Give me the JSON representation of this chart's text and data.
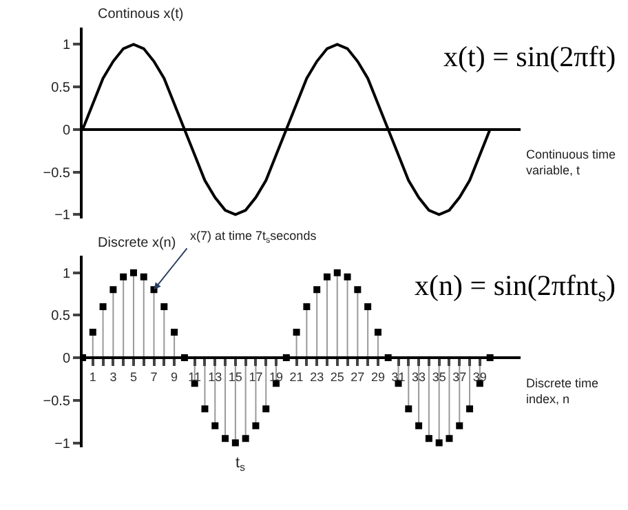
{
  "chart_data": [
    {
      "type": "line",
      "ylabel": "Continous x(t)",
      "xlabel": "Continuous time variable, t",
      "marker": "none",
      "line_style": "solid",
      "tick_labels": "y",
      "categories": [
        null,
        null,
        null,
        null,
        null,
        null,
        null,
        null,
        null,
        null,
        null,
        null,
        null,
        null,
        null,
        null,
        null,
        null,
        null,
        null,
        null,
        null,
        null,
        null,
        null,
        null,
        null,
        null,
        null,
        null,
        null,
        null,
        null,
        null,
        null,
        null,
        null,
        null,
        null,
        null,
        null
      ],
      "series": [
        {
          "color": "#000000",
          "values": [
            0,
            0.3,
            0.6,
            0.8,
            0.95,
            1,
            0.95,
            0.8,
            0.6,
            0.3,
            0,
            -0.3,
            -0.6,
            -0.8,
            -0.95,
            -1,
            -0.95,
            -0.8,
            -0.6,
            -0.3,
            0,
            0.3,
            0.6,
            0.8,
            0.95,
            1,
            0.95,
            0.8,
            0.6,
            0.3,
            0,
            -0.3,
            -0.6,
            -0.8,
            -0.95,
            -1,
            -0.95,
            -0.8,
            -0.6,
            -0.3,
            0
          ]
        }
      ],
      "ylim": [
        -1.05,
        1.2
      ],
      "yticks": [
        -1,
        -0.5,
        0,
        0.5,
        1
      ],
      "annotations": [
        "x(t) = sin(2πft)"
      ]
    },
    {
      "type": "lollipop",
      "ylabel": "Discrete x(n)",
      "xlabel": "Discrete time index, n",
      "marker": "square",
      "x": [
        0,
        1,
        2,
        3,
        4,
        5,
        6,
        7,
        8,
        9,
        10,
        11,
        12,
        13,
        14,
        15,
        16,
        17,
        18,
        19,
        20,
        21,
        22,
        23,
        24,
        25,
        26,
        27,
        28,
        29,
        30,
        31,
        32,
        33,
        34,
        35,
        36,
        37,
        38,
        39,
        40
      ],
      "series": [
        {
          "color": "#000000",
          "values": [
            0,
            0.3,
            0.6,
            0.8,
            0.95,
            1,
            0.95,
            0.8,
            0.6,
            0.3,
            0,
            -0.3,
            -0.6,
            -0.8,
            -0.95,
            -1,
            -0.95,
            -0.8,
            -0.6,
            -0.3,
            0,
            0.3,
            0.6,
            0.8,
            0.95,
            1,
            0.95,
            0.8,
            0.6,
            0.3,
            0,
            -0.3,
            -0.6,
            -0.8,
            -0.95,
            -1,
            -0.95,
            -0.8,
            -0.6,
            -0.3,
            0
          ]
        }
      ],
      "xlim": [
        0,
        43
      ],
      "xticks": [
        1,
        {
          "value": 2,
          "label": null
        },
        3,
        {
          "value": 4,
          "label": null
        },
        5,
        {
          "value": 6,
          "label": null
        },
        7,
        {
          "value": 8,
          "label": null
        },
        9,
        11,
        {
          "value": 12,
          "label": null
        },
        13,
        {
          "value": 14,
          "label": null
        },
        15,
        {
          "value": 16,
          "label": null
        },
        17,
        {
          "value": 18,
          "label": null
        },
        19,
        21,
        {
          "value": 22,
          "label": null
        },
        23,
        {
          "value": 24,
          "label": null
        },
        25,
        {
          "value": 26,
          "label": null
        },
        27,
        {
          "value": 28,
          "label": null
        },
        29,
        31,
        {
          "value": 32,
          "label": null
        },
        33,
        {
          "value": 34,
          "label": null
        },
        35,
        {
          "value": 36,
          "label": null
        },
        37,
        {
          "value": 38,
          "label": null
        },
        39
      ],
      "ylim": [
        -1.05,
        1.2
      ],
      "yticks": [
        -1,
        -0.5,
        0,
        0.5,
        1
      ],
      "annotations": [
        {
          "text": "x(7) at time 7t$_{s}$seconds",
          "x": 7,
          "y": 0.8
        },
        "x(n) = sin(2πfnt$_{s}$)",
        "t$_{s}$"
      ]
    }
  ]
}
